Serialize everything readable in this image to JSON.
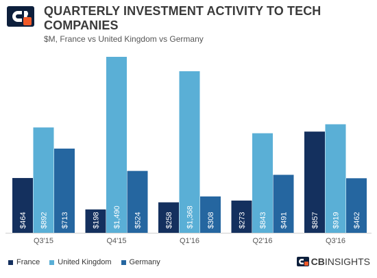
{
  "header": {
    "title": "QUARTERLY INVESTMENT ACTIVITY TO TECH COMPANIES",
    "subtitle": "$M, France vs United Kingdom vs Germany"
  },
  "brand": {
    "cb": "CB",
    "rest": "INSIGHTS",
    "logo_icon": "cb-insights-logo-icon",
    "logo_dark": "#0d1f3c",
    "logo_accent": "#f15a29"
  },
  "chart_data": {
    "type": "bar",
    "title": "QUARTERLY INVESTMENT ACTIVITY TO TECH COMPANIES",
    "subtitle": "$M, France vs United Kingdom vs Germany",
    "categories": [
      "Q3'15",
      "Q4'15",
      "Q1'16",
      "Q2'16",
      "Q3'16"
    ],
    "series": [
      {
        "name": "France",
        "color": "#14305e",
        "values": [
          464,
          198,
          258,
          273,
          857
        ],
        "labels": [
          "$464",
          "$198",
          "$258",
          "$273",
          "$857"
        ]
      },
      {
        "name": "United Kingdom",
        "color": "#5aafd6",
        "values": [
          892,
          1490,
          1368,
          843,
          919
        ],
        "labels": [
          "$892",
          "$1,490",
          "$1,368",
          "$843",
          "$919"
        ]
      },
      {
        "name": "Germany",
        "color": "#2566a0",
        "values": [
          713,
          524,
          308,
          491,
          462
        ],
        "labels": [
          "$713",
          "$524",
          "$308",
          "$491",
          "$462"
        ]
      }
    ],
    "ylim": [
      0,
      1490
    ],
    "grid": false,
    "legend": "bottom-left",
    "label_color": "#ffffff"
  }
}
